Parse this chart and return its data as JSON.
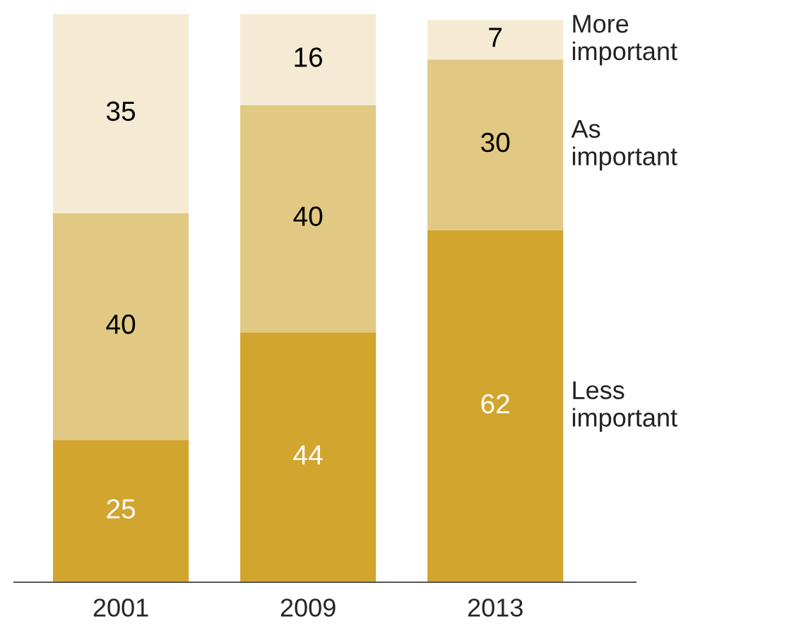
{
  "chart_data": {
    "type": "bar",
    "stacked": true,
    "categories": [
      "2001",
      "2009",
      "2013"
    ],
    "series": [
      {
        "name": "Less important",
        "color": "#d2a52f",
        "values": [
          25,
          44,
          62
        ]
      },
      {
        "name": "As important",
        "color": "#e2c983",
        "values": [
          40,
          40,
          30
        ]
      },
      {
        "name": "More important",
        "color": "#f5ebd4",
        "values": [
          35,
          16,
          7
        ]
      }
    ],
    "ylim": [
      0,
      100
    ],
    "data_labels": true,
    "legend": false,
    "grid": false,
    "tick_labels": "x"
  }
}
